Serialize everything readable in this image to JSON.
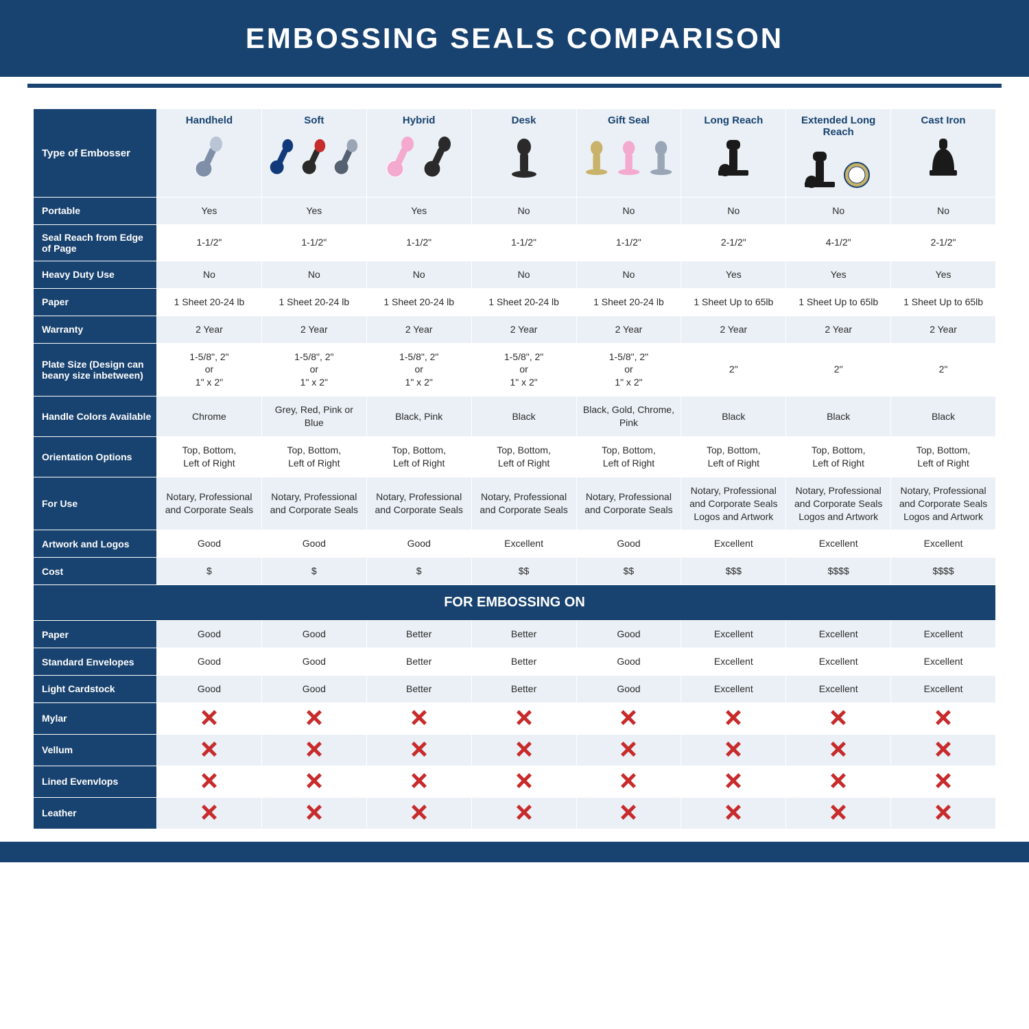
{
  "title": "EMBOSSING SEALS COMPARISON",
  "section_label": "FOR EMBOSSING ON",
  "colors": {
    "brand": "#18426f",
    "alt_row": "#eaf0f6",
    "plain_row": "#ffffff",
    "cross": "#c72b2b",
    "text": "#2a2a2a"
  },
  "corner_label": "Type of Embosser",
  "columns": [
    {
      "label": "Handheld",
      "variants": [
        {
          "handle": "#b9c4d4",
          "body": "#7f8fa8"
        }
      ]
    },
    {
      "label": "Soft",
      "variants": [
        {
          "handle": "#123a7a",
          "body": "#123a7a"
        },
        {
          "handle": "#c72b2b",
          "body": "#2a2a2a"
        },
        {
          "handle": "#9aa6b5",
          "body": "#556070"
        }
      ]
    },
    {
      "label": "Hybrid",
      "variants": [
        {
          "handle": "#f4a9cf",
          "body": "#f4a9cf"
        },
        {
          "handle": "#2a2a2a",
          "body": "#2a2a2a"
        }
      ]
    },
    {
      "label": "Desk",
      "variants": [
        {
          "handle": "#2a2a2a",
          "body": "#2a2a2a",
          "base": true
        }
      ]
    },
    {
      "label": "Gift Seal",
      "variants": [
        {
          "handle": "#c9b26a",
          "body": "#c9b26a",
          "base": true
        },
        {
          "handle": "#f4a9cf",
          "body": "#f4a9cf",
          "base": true
        },
        {
          "handle": "#9aa6b5",
          "body": "#9aa6b5",
          "base": true
        }
      ]
    },
    {
      "label": "Long Reach",
      "variants": [
        {
          "handle": "#1a1a1a",
          "body": "#1a1a1a",
          "long": true
        }
      ]
    },
    {
      "label": "Extended Long Reach",
      "variants": [
        {
          "handle": "#1a1a1a",
          "body": "#1a1a1a",
          "long": true
        },
        {
          "disc": true
        }
      ]
    },
    {
      "label": "Cast Iron",
      "variants": [
        {
          "handle": "#1a1a1a",
          "body": "#1a1a1a",
          "cast": true
        }
      ]
    }
  ],
  "spec_rows": [
    {
      "label": "Portable",
      "alt": true,
      "cells": [
        "Yes",
        "Yes",
        "Yes",
        "No",
        "No",
        "No",
        "No",
        "No"
      ]
    },
    {
      "label": "Seal Reach from Edge of Page",
      "alt": false,
      "cells": [
        "1-1/2\"",
        "1-1/2\"",
        "1-1/2\"",
        "1-1/2\"",
        "1-1/2\"",
        "2-1/2\"",
        "4-1/2\"",
        "2-1/2\""
      ]
    },
    {
      "label": "Heavy Duty Use",
      "alt": true,
      "cells": [
        "No",
        "No",
        "No",
        "No",
        "No",
        "Yes",
        "Yes",
        "Yes"
      ]
    },
    {
      "label": "Paper",
      "alt": false,
      "cells": [
        "1 Sheet 20-24 lb",
        "1 Sheet 20-24 lb",
        "1 Sheet 20-24 lb",
        "1 Sheet 20-24 lb",
        "1 Sheet 20-24 lb",
        "1 Sheet Up to 65lb",
        "1 Sheet Up to 65lb",
        "1 Sheet Up to 65lb"
      ]
    },
    {
      "label": "Warranty",
      "alt": true,
      "cells": [
        "2 Year",
        "2 Year",
        "2 Year",
        "2 Year",
        "2 Year",
        "2 Year",
        "2 Year",
        "2 Year"
      ]
    },
    {
      "label": "Plate Size (Design can beany size inbetween)",
      "alt": false,
      "cells": [
        "1-5/8\", 2\"\nor\n1\" x 2\"",
        "1-5/8\", 2\"\nor\n1\" x 2\"",
        "1-5/8\", 2\"\nor\n1\" x 2\"",
        "1-5/8\", 2\"\nor\n1\" x 2\"",
        "1-5/8\", 2\"\nor\n1\" x 2\"",
        "2\"",
        "2\"",
        "2\""
      ]
    },
    {
      "label": "Handle Colors Available",
      "alt": true,
      "cells": [
        "Chrome",
        "Grey, Red, Pink or Blue",
        "Black, Pink",
        "Black",
        "Black, Gold, Chrome, Pink",
        "Black",
        "Black",
        "Black"
      ]
    },
    {
      "label": "Orientation Options",
      "alt": false,
      "cells": [
        "Top, Bottom,\nLeft of Right",
        "Top, Bottom,\nLeft of Right",
        "Top, Bottom,\nLeft of Right",
        "Top, Bottom,\nLeft of Right",
        "Top, Bottom,\nLeft of Right",
        "Top, Bottom,\nLeft of Right",
        "Top, Bottom,\nLeft of Right",
        "Top, Bottom,\nLeft of Right"
      ]
    },
    {
      "label": "For Use",
      "alt": true,
      "cells": [
        "Notary, Professional and Corporate Seals",
        "Notary, Professional and Corporate Seals",
        "Notary, Professional and Corporate Seals",
        "Notary, Professional and Corporate Seals",
        "Notary, Professional and Corporate Seals",
        "Notary, Professional and Corporate Seals Logos and Artwork",
        "Notary, Professional and Corporate Seals Logos and Artwork",
        "Notary, Professional and Corporate Seals Logos and Artwork"
      ]
    },
    {
      "label": "Artwork and Logos",
      "alt": false,
      "cells": [
        "Good",
        "Good",
        "Good",
        "Excellent",
        "Good",
        "Excellent",
        "Excellent",
        "Excellent"
      ]
    },
    {
      "label": "Cost",
      "alt": true,
      "cells": [
        "$",
        "$",
        "$",
        "$$",
        "$$",
        "$$$",
        "$$$$",
        "$$$$"
      ]
    }
  ],
  "material_rows": [
    {
      "label": "Paper",
      "alt": true,
      "cells": [
        "Good",
        "Good",
        "Better",
        "Better",
        "Good",
        "Excellent",
        "Excellent",
        "Excellent"
      ]
    },
    {
      "label": "Standard Envelopes",
      "alt": false,
      "cells": [
        "Good",
        "Good",
        "Better",
        "Better",
        "Good",
        "Excellent",
        "Excellent",
        "Excellent"
      ]
    },
    {
      "label": "Light Cardstock",
      "alt": true,
      "cells": [
        "Good",
        "Good",
        "Better",
        "Better",
        "Good",
        "Excellent",
        "Excellent",
        "Excellent"
      ]
    },
    {
      "label": "Mylar",
      "alt": false,
      "cells": [
        "X",
        "X",
        "X",
        "X",
        "X",
        "X",
        "X",
        "X"
      ]
    },
    {
      "label": "Vellum",
      "alt": true,
      "cells": [
        "X",
        "X",
        "X",
        "X",
        "X",
        "X",
        "X",
        "X"
      ]
    },
    {
      "label": "Lined Evenvlops",
      "alt": false,
      "cells": [
        "X",
        "X",
        "X",
        "X",
        "X",
        "X",
        "X",
        "X"
      ]
    },
    {
      "label": "Leather",
      "alt": true,
      "cells": [
        "X",
        "X",
        "X",
        "X",
        "X",
        "X",
        "X",
        "X"
      ]
    }
  ]
}
